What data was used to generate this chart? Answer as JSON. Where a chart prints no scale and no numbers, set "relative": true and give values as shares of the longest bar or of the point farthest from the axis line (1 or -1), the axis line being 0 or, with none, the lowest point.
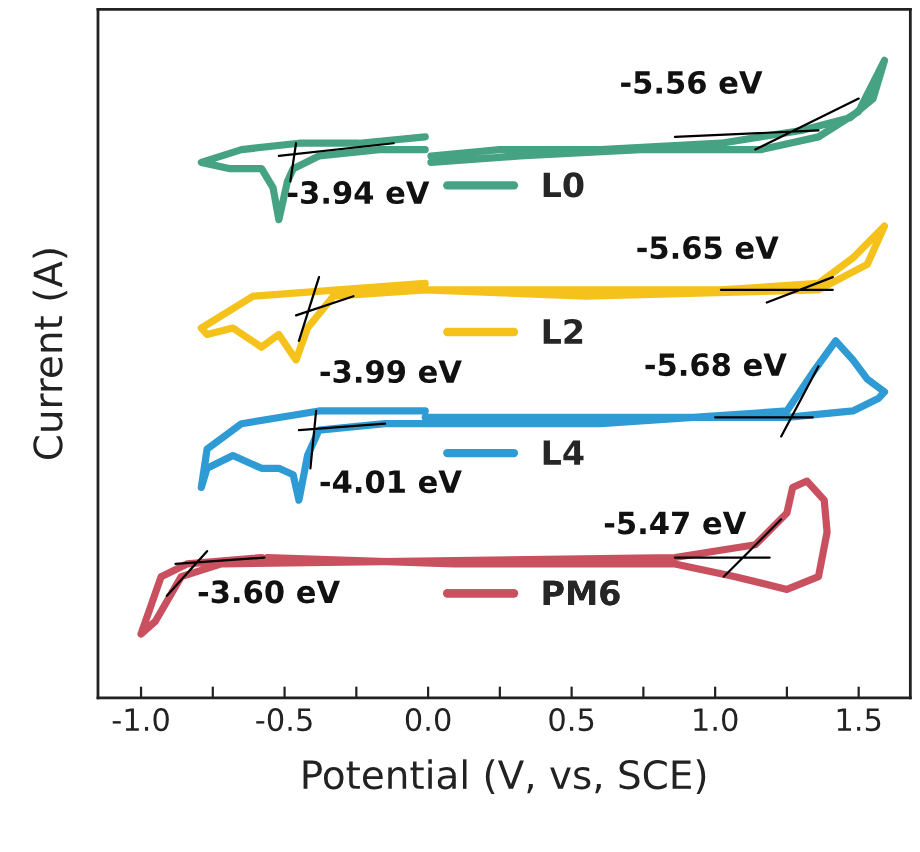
{
  "chart_data": {
    "type": "line",
    "xlabel": "Potential (V, vs, SCE)",
    "ylabel": "Current (A)",
    "relative": true,
    "tick_labels": "x",
    "legend": "center",
    "grid": false,
    "xlim": [
      -1.15,
      1.68
    ],
    "xticks": [
      {
        "value": -1,
        "label": "-1.0"
      },
      {
        "value": -0.75,
        "label": null
      },
      -0.5,
      {
        "value": -0.25,
        "label": null
      },
      {
        "value": 0,
        "label": "0.0"
      },
      {
        "value": 0.25,
        "label": null
      },
      0.5,
      {
        "value": 0.75,
        "label": null
      },
      {
        "value": 1,
        "label": "1.0"
      },
      {
        "value": 1.25,
        "label": null
      },
      1.5
    ],
    "series": [
      {
        "name": "L0",
        "color": "#45a383",
        "x": [
          -0.01,
          -0.24,
          -0.45,
          -0.65,
          -0.79,
          -0.69,
          -0.58,
          -0.54,
          -0.52,
          -0.49,
          -0.47,
          -0.38,
          -0.17,
          -0.01,
          null,
          0.01,
          0.32,
          0.74,
          1.16,
          1.36,
          1.5,
          1.59,
          1.55,
          1.47,
          1.3,
          1.02,
          0.6,
          0.25,
          0.01
        ],
        "values": [
          0.88,
          0.87,
          0.87,
          0.86,
          0.84,
          0.83,
          0.83,
          0.8,
          0.75,
          0.81,
          0.83,
          0.85,
          0.86,
          0.86,
          null,
          0.84,
          0.85,
          0.86,
          0.86,
          0.88,
          0.92,
          1.0,
          0.94,
          0.91,
          0.89,
          0.87,
          0.86,
          0.86,
          0.85
        ]
      },
      {
        "name": "L2",
        "color": "#f5c21b",
        "x": [
          -0.01,
          -0.61,
          -0.79,
          -0.77,
          -0.68,
          -0.58,
          -0.52,
          -0.46,
          -0.42,
          -0.33,
          -0.01,
          1.02,
          1.36,
          1.48,
          1.59,
          1.53,
          1.36,
          0.55,
          -0.01
        ],
        "values": [
          0.65,
          0.63,
          0.58,
          0.57,
          0.58,
          0.55,
          0.57,
          0.53,
          0.58,
          0.63,
          0.64,
          0.64,
          0.65,
          0.69,
          0.74,
          0.68,
          0.64,
          0.63,
          0.64
        ]
      },
      {
        "name": "L4",
        "color": "#2f9bd5",
        "x": [
          -0.01,
          -0.38,
          -0.65,
          -0.77,
          -0.79,
          -0.77,
          -0.68,
          -0.58,
          -0.52,
          -0.47,
          -0.45,
          -0.42,
          -0.38,
          -0.15,
          -0.01,
          0.6,
          1.25,
          1.34,
          1.42,
          1.48,
          1.53,
          1.59,
          1.57,
          1.48,
          1.25,
          0.55,
          -0.01
        ],
        "values": [
          0.45,
          0.45,
          0.43,
          0.39,
          0.33,
          0.36,
          0.38,
          0.36,
          0.36,
          0.35,
          0.31,
          0.38,
          0.42,
          0.43,
          0.43,
          0.43,
          0.45,
          0.51,
          0.56,
          0.53,
          0.5,
          0.48,
          0.47,
          0.45,
          0.44,
          0.44,
          0.44
        ]
      },
      {
        "name": "PM6",
        "color": "#c9515f",
        "x": [
          -0.58,
          -0.84,
          -0.93,
          -1.0,
          -0.95,
          -0.86,
          -0.72,
          0.86,
          1.14,
          1.25,
          1.27,
          1.32,
          1.38,
          1.39,
          1.36,
          1.25,
          1.07,
          0.86,
          0.09,
          -0.56
        ],
        "values": [
          0.22,
          0.21,
          0.19,
          0.1,
          0.12,
          0.19,
          0.21,
          0.22,
          0.24,
          0.29,
          0.33,
          0.34,
          0.31,
          0.26,
          0.19,
          0.17,
          0.19,
          0.21,
          0.21,
          0.22
        ]
      },
      {
        "color": "#000000",
        "x": [
          -0.52,
          -0.12,
          null,
          -0.46,
          -0.48,
          null,
          0.86,
          1.36,
          null,
          1.14,
          1.5,
          null,
          -0.46,
          -0.26,
          null,
          -0.38,
          -0.45,
          null,
          1.02,
          1.41,
          null,
          1.18,
          1.41,
          null,
          -0.45,
          -0.15,
          null,
          -0.39,
          -0.41,
          null,
          1.0,
          1.34,
          null,
          1.23,
          1.36,
          null,
          -0.88,
          -0.57,
          null,
          -0.91,
          -0.77,
          null,
          0.86,
          1.19,
          null,
          1.03,
          1.23
        ],
        "values": [
          0.85,
          0.87,
          null,
          0.87,
          0.81,
          null,
          0.88,
          0.89,
          null,
          0.86,
          0.94,
          null,
          0.6,
          0.63,
          null,
          0.66,
          0.56,
          null,
          0.64,
          0.64,
          null,
          0.62,
          0.66,
          null,
          0.42,
          0.43,
          null,
          0.45,
          0.36,
          null,
          0.44,
          0.44,
          null,
          0.41,
          0.52,
          null,
          0.21,
          0.22,
          null,
          0.16,
          0.23,
          null,
          0.22,
          0.22,
          null,
          0.19,
          0.28
        ]
      }
    ],
    "annotations": [
      "-5.56 eV",
      "-3.94 eV",
      "-5.65 eV",
      "-3.99 eV",
      "-5.68 eV",
      "-4.01 eV",
      "-5.47 eV",
      "-3.60 eV"
    ]
  }
}
